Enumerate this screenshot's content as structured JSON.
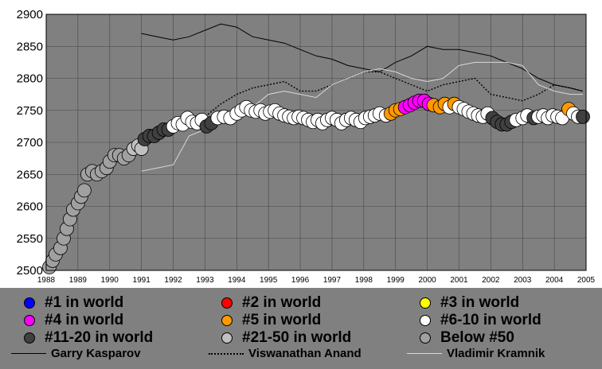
{
  "chart_data": {
    "type": "line",
    "ylim": [
      2500,
      2900
    ],
    "xlim": [
      1988,
      2005
    ],
    "yticks": [
      "2500",
      "2550",
      "2600",
      "2650",
      "2700",
      "2750",
      "2800",
      "2850",
      "2900"
    ],
    "xticks": [
      "1988",
      "1989",
      "1990",
      "1991",
      "1992",
      "1993",
      "1994",
      "1995",
      "1996",
      "1997",
      "1998",
      "1999",
      "2000",
      "2001",
      "2002",
      "2003",
      "2004",
      "2005"
    ],
    "grid": true,
    "background": "#808080",
    "rank_categories": [
      {
        "label": "#1 in world",
        "color": "#0000ff"
      },
      {
        "label": "#2 in world",
        "color": "#ff0000"
      },
      {
        "label": "#3 in world",
        "color": "#ffff00"
      },
      {
        "label": "#4 in world",
        "color": "#ff00ff"
      },
      {
        "label": "#5 in world",
        "color": "#ff9900"
      },
      {
        "label": "#6-10 in world",
        "color": "#ffffff"
      },
      {
        "label": "#11-20 in world",
        "color": "#404040"
      },
      {
        "label": "#21-50 in world",
        "color": "#c0c0c0"
      },
      {
        "label": "Below #50",
        "color": "#a0a0a0"
      }
    ],
    "series": [
      {
        "name": "Garry Kasparov",
        "style": "solid",
        "color": "#000000",
        "x": [
          1991.0,
          1991.5,
          1992.0,
          1992.5,
          1993.0,
          1993.5,
          1994.0,
          1994.5,
          1995.0,
          1995.5,
          1996.0,
          1996.5,
          1997.0,
          1997.5,
          1998.0,
          1998.5,
          1999.0,
          1999.5,
          2000.0,
          2000.5,
          2001.0,
          2001.5,
          2002.0,
          2002.5,
          2003.0,
          2003.5,
          2004.0,
          2004.5,
          2004.9
        ],
        "y": [
          2870,
          2865,
          2860,
          2865,
          2875,
          2885,
          2880,
          2865,
          2860,
          2855,
          2845,
          2835,
          2830,
          2820,
          2815,
          2810,
          2825,
          2835,
          2850,
          2845,
          2845,
          2840,
          2835,
          2825,
          2815,
          2800,
          2790,
          2785,
          2780
        ]
      },
      {
        "name": "Viswanathan Anand",
        "style": "dotted",
        "color": "#000000",
        "x": [
          1992.5,
          1993.0,
          1993.5,
          1994.0,
          1994.5,
          1995.0,
          1995.5,
          1996.0,
          1996.5,
          1997.0,
          1997.5,
          1998.0,
          1998.5,
          1999.0,
          1999.5,
          2000.0,
          2000.5,
          2001.0,
          2001.5,
          2002.0,
          2002.5,
          2003.0,
          2003.5,
          2004.0,
          2004.5,
          2004.9
        ],
        "y": [
          2725,
          2740,
          2760,
          2775,
          2785,
          2790,
          2795,
          2780,
          2780,
          2790,
          2800,
          2810,
          2810,
          2800,
          2790,
          2780,
          2790,
          2795,
          2800,
          2775,
          2770,
          2765,
          2775,
          2790,
          2785,
          2780
        ]
      },
      {
        "name": "Vladimir Kramnik",
        "style": "solid",
        "color": "#d8d8d8",
        "x": [
          1991.0,
          1991.5,
          1992.0,
          1992.5,
          1993.0,
          1993.5,
          1994.0,
          1994.5,
          1995.0,
          1995.5,
          1996.0,
          1996.5,
          1997.0,
          1997.5,
          1998.0,
          1998.5,
          1999.0,
          1999.5,
          2000.0,
          2000.5,
          2001.0,
          2001.5,
          2002.0,
          2002.5,
          2003.0,
          2003.5,
          2004.0,
          2004.5,
          2004.9
        ],
        "y": [
          2655,
          2660,
          2665,
          2710,
          2720,
          2735,
          2740,
          2755,
          2775,
          2780,
          2775,
          2770,
          2790,
          2800,
          2810,
          2815,
          2810,
          2800,
          2795,
          2800,
          2820,
          2825,
          2825,
          2825,
          2820,
          2790,
          2780,
          2775,
          2775
        ]
      }
    ],
    "points": [
      {
        "x": 1988.1,
        "y": 2505,
        "rank": "Below #50"
      },
      {
        "x": 1988.2,
        "y": 2515,
        "rank": "Below #50"
      },
      {
        "x": 1988.3,
        "y": 2525,
        "rank": "Below #50"
      },
      {
        "x": 1988.45,
        "y": 2535,
        "rank": "Below #50"
      },
      {
        "x": 1988.55,
        "y": 2550,
        "rank": "Below #50"
      },
      {
        "x": 1988.65,
        "y": 2565,
        "rank": "Below #50"
      },
      {
        "x": 1988.75,
        "y": 2580,
        "rank": "Below #50"
      },
      {
        "x": 1988.85,
        "y": 2595,
        "rank": "Below #50"
      },
      {
        "x": 1989.0,
        "y": 2605,
        "rank": "Below #50"
      },
      {
        "x": 1989.1,
        "y": 2615,
        "rank": "Below #50"
      },
      {
        "x": 1989.2,
        "y": 2625,
        "rank": "Below #50"
      },
      {
        "x": 1989.3,
        "y": 2650,
        "rank": "Below #50"
      },
      {
        "x": 1989.45,
        "y": 2655,
        "rank": "Below #50"
      },
      {
        "x": 1989.6,
        "y": 2650,
        "rank": "Below #50"
      },
      {
        "x": 1989.75,
        "y": 2655,
        "rank": "Below #50"
      },
      {
        "x": 1989.9,
        "y": 2660,
        "rank": "Below #50"
      },
      {
        "x": 1990.0,
        "y": 2670,
        "rank": "Below #50"
      },
      {
        "x": 1990.15,
        "y": 2680,
        "rank": "Below #50"
      },
      {
        "x": 1990.3,
        "y": 2680,
        "rank": "Below #50"
      },
      {
        "x": 1990.45,
        "y": 2675,
        "rank": "Below #50"
      },
      {
        "x": 1990.6,
        "y": 2680,
        "rank": "Below #50"
      },
      {
        "x": 1990.75,
        "y": 2690,
        "rank": "#21-50 in world"
      },
      {
        "x": 1990.9,
        "y": 2695,
        "rank": "#21-50 in world"
      },
      {
        "x": 1991.0,
        "y": 2690,
        "rank": "#21-50 in world"
      },
      {
        "x": 1991.1,
        "y": 2705,
        "rank": "#11-20 in world"
      },
      {
        "x": 1991.25,
        "y": 2710,
        "rank": "#11-20 in world"
      },
      {
        "x": 1991.4,
        "y": 2710,
        "rank": "#11-20 in world"
      },
      {
        "x": 1991.55,
        "y": 2715,
        "rank": "#11-20 in world"
      },
      {
        "x": 1991.7,
        "y": 2720,
        "rank": "#11-20 in world"
      },
      {
        "x": 1991.85,
        "y": 2720,
        "rank": "#11-20 in world"
      },
      {
        "x": 1992.0,
        "y": 2725,
        "rank": "#6-10 in world"
      },
      {
        "x": 1992.15,
        "y": 2730,
        "rank": "#6-10 in world"
      },
      {
        "x": 1992.3,
        "y": 2728,
        "rank": "#6-10 in world"
      },
      {
        "x": 1992.45,
        "y": 2738,
        "rank": "#6-10 in world"
      },
      {
        "x": 1992.6,
        "y": 2732,
        "rank": "#6-10 in world"
      },
      {
        "x": 1992.75,
        "y": 2730,
        "rank": "#6-10 in world"
      },
      {
        "x": 1992.9,
        "y": 2735,
        "rank": "#6-10 in world"
      },
      {
        "x": 1993.05,
        "y": 2725,
        "rank": "#11-20 in world"
      },
      {
        "x": 1993.2,
        "y": 2730,
        "rank": "#11-20 in world"
      },
      {
        "x": 1993.4,
        "y": 2738,
        "rank": "#6-10 in world"
      },
      {
        "x": 1993.6,
        "y": 2740,
        "rank": "#6-10 in world"
      },
      {
        "x": 1993.8,
        "y": 2738,
        "rank": "#6-10 in world"
      },
      {
        "x": 1994.0,
        "y": 2745,
        "rank": "#6-10 in world"
      },
      {
        "x": 1994.15,
        "y": 2750,
        "rank": "#6-10 in world"
      },
      {
        "x": 1994.3,
        "y": 2755,
        "rank": "#6-10 in world"
      },
      {
        "x": 1994.45,
        "y": 2750,
        "rank": "#6-10 in world"
      },
      {
        "x": 1994.6,
        "y": 2748,
        "rank": "#6-10 in world"
      },
      {
        "x": 1994.75,
        "y": 2750,
        "rank": "#6-10 in world"
      },
      {
        "x": 1994.9,
        "y": 2745,
        "rank": "#6-10 in world"
      },
      {
        "x": 1995.05,
        "y": 2748,
        "rank": "#6-10 in world"
      },
      {
        "x": 1995.2,
        "y": 2750,
        "rank": "#6-10 in world"
      },
      {
        "x": 1995.35,
        "y": 2745,
        "rank": "#6-10 in world"
      },
      {
        "x": 1995.5,
        "y": 2742,
        "rank": "#6-10 in world"
      },
      {
        "x": 1995.65,
        "y": 2740,
        "rank": "#6-10 in world"
      },
      {
        "x": 1995.8,
        "y": 2738,
        "rank": "#6-10 in world"
      },
      {
        "x": 1995.95,
        "y": 2740,
        "rank": "#6-10 in world"
      },
      {
        "x": 1996.1,
        "y": 2738,
        "rank": "#6-10 in world"
      },
      {
        "x": 1996.25,
        "y": 2735,
        "rank": "#6-10 in world"
      },
      {
        "x": 1996.4,
        "y": 2732,
        "rank": "#6-10 in world"
      },
      {
        "x": 1996.55,
        "y": 2735,
        "rank": "#6-10 in world"
      },
      {
        "x": 1996.7,
        "y": 2730,
        "rank": "#6-10 in world"
      },
      {
        "x": 1996.85,
        "y": 2735,
        "rank": "#6-10 in world"
      },
      {
        "x": 1997.0,
        "y": 2738,
        "rank": "#6-10 in world"
      },
      {
        "x": 1997.15,
        "y": 2735,
        "rank": "#6-10 in world"
      },
      {
        "x": 1997.3,
        "y": 2730,
        "rank": "#6-10 in world"
      },
      {
        "x": 1997.45,
        "y": 2735,
        "rank": "#6-10 in world"
      },
      {
        "x": 1997.6,
        "y": 2738,
        "rank": "#6-10 in world"
      },
      {
        "x": 1997.75,
        "y": 2735,
        "rank": "#6-10 in world"
      },
      {
        "x": 1997.9,
        "y": 2732,
        "rank": "#6-10 in world"
      },
      {
        "x": 1998.05,
        "y": 2738,
        "rank": "#6-10 in world"
      },
      {
        "x": 1998.2,
        "y": 2740,
        "rank": "#6-10 in world"
      },
      {
        "x": 1998.35,
        "y": 2742,
        "rank": "#6-10 in world"
      },
      {
        "x": 1998.5,
        "y": 2745,
        "rank": "#6-10 in world"
      },
      {
        "x": 1998.7,
        "y": 2742,
        "rank": "#6-10 in world"
      },
      {
        "x": 1998.85,
        "y": 2745,
        "rank": "#5 in world"
      },
      {
        "x": 1999.0,
        "y": 2750,
        "rank": "#5 in world"
      },
      {
        "x": 1999.15,
        "y": 2752,
        "rank": "#5 in world"
      },
      {
        "x": 1999.3,
        "y": 2755,
        "rank": "#4 in world"
      },
      {
        "x": 1999.45,
        "y": 2758,
        "rank": "#4 in world"
      },
      {
        "x": 1999.6,
        "y": 2762,
        "rank": "#4 in world"
      },
      {
        "x": 1999.75,
        "y": 2765,
        "rank": "#4 in world"
      },
      {
        "x": 1999.9,
        "y": 2765,
        "rank": "#4 in world"
      },
      {
        "x": 2000.05,
        "y": 2760,
        "rank": "#4 in world"
      },
      {
        "x": 2000.2,
        "y": 2758,
        "rank": "#5 in world"
      },
      {
        "x": 2000.4,
        "y": 2755,
        "rank": "#5 in world"
      },
      {
        "x": 2000.55,
        "y": 2760,
        "rank": "#5 in world"
      },
      {
        "x": 2000.7,
        "y": 2755,
        "rank": "#6-10 in world"
      },
      {
        "x": 2000.85,
        "y": 2760,
        "rank": "#5 in world"
      },
      {
        "x": 2001.0,
        "y": 2755,
        "rank": "#6-10 in world"
      },
      {
        "x": 2001.15,
        "y": 2752,
        "rank": "#6-10 in world"
      },
      {
        "x": 2001.3,
        "y": 2748,
        "rank": "#6-10 in world"
      },
      {
        "x": 2001.45,
        "y": 2745,
        "rank": "#6-10 in world"
      },
      {
        "x": 2001.6,
        "y": 2742,
        "rank": "#6-10 in world"
      },
      {
        "x": 2001.75,
        "y": 2740,
        "rank": "#6-10 in world"
      },
      {
        "x": 2001.9,
        "y": 2745,
        "rank": "#6-10 in world"
      },
      {
        "x": 2002.05,
        "y": 2738,
        "rank": "#11-20 in world"
      },
      {
        "x": 2002.2,
        "y": 2732,
        "rank": "#11-20 in world"
      },
      {
        "x": 2002.35,
        "y": 2728,
        "rank": "#11-20 in world"
      },
      {
        "x": 2002.5,
        "y": 2728,
        "rank": "#11-20 in world"
      },
      {
        "x": 2002.65,
        "y": 2732,
        "rank": "#11-20 in world"
      },
      {
        "x": 2002.8,
        "y": 2735,
        "rank": "#6-10 in world"
      },
      {
        "x": 2003.0,
        "y": 2738,
        "rank": "#6-10 in world"
      },
      {
        "x": 2003.15,
        "y": 2742,
        "rank": "#6-10 in world"
      },
      {
        "x": 2003.35,
        "y": 2738,
        "rank": "#11-20 in world"
      },
      {
        "x": 2003.5,
        "y": 2740,
        "rank": "#6-10 in world"
      },
      {
        "x": 2003.65,
        "y": 2742,
        "rank": "#6-10 in world"
      },
      {
        "x": 2003.8,
        "y": 2738,
        "rank": "#6-10 in world"
      },
      {
        "x": 2003.95,
        "y": 2742,
        "rank": "#6-10 in world"
      },
      {
        "x": 2004.1,
        "y": 2740,
        "rank": "#6-10 in world"
      },
      {
        "x": 2004.25,
        "y": 2738,
        "rank": "#6-10 in world"
      },
      {
        "x": 2004.45,
        "y": 2752,
        "rank": "#5 in world"
      },
      {
        "x": 2004.6,
        "y": 2745,
        "rank": "#6-10 in world"
      },
      {
        "x": 2004.75,
        "y": 2740,
        "rank": "#6-10 in world"
      },
      {
        "x": 2004.9,
        "y": 2740,
        "rank": "#11-20 in world"
      }
    ]
  }
}
